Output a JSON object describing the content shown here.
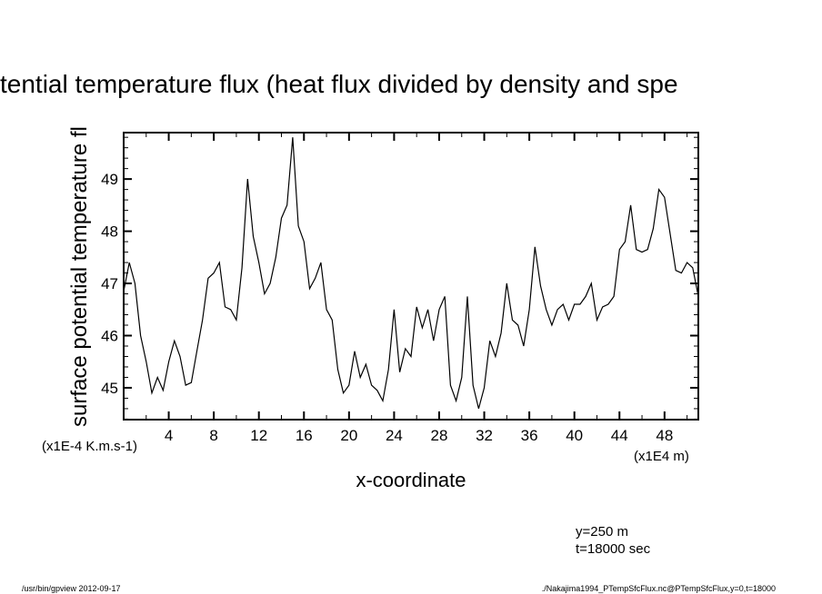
{
  "chart_data": {
    "type": "line",
    "title": "tential temperature flux (heat flux divided by density and spe",
    "xlabel": "x-coordinate",
    "ylabel": "surface potential temperature fl",
    "x_units": "(x1E4 m)",
    "y_units": "(x1E-4 K.m.s-1)",
    "xlim": [
      0,
      51
    ],
    "ylim": [
      44.39,
      49.89
    ],
    "x_ticks": [
      4,
      8,
      12,
      16,
      20,
      24,
      28,
      32,
      36,
      40,
      44,
      48
    ],
    "x_minor_step": 2,
    "y_ticks": [
      45,
      46,
      47,
      48,
      49
    ],
    "y_minor_step": 0.2,
    "grid": false,
    "series": [
      {
        "name": "PTempSfcFlux",
        "color": "#000000",
        "x": [
          0,
          0.5,
          1,
          1.5,
          2,
          2.5,
          3,
          3.5,
          4,
          4.5,
          5,
          5.5,
          6,
          6.5,
          7,
          7.5,
          8,
          8.5,
          9,
          9.5,
          10,
          10.5,
          11,
          11.5,
          12,
          12.5,
          13,
          13.5,
          14,
          14.5,
          15,
          15.5,
          16,
          16.5,
          17,
          17.5,
          18,
          18.5,
          19,
          19.5,
          20,
          20.5,
          21,
          21.5,
          22,
          22.5,
          23,
          23.5,
          24,
          24.5,
          25,
          25.5,
          26,
          26.5,
          27,
          27.5,
          28,
          28.5,
          29,
          29.5,
          30,
          30.5,
          31,
          31.5,
          32,
          32.5,
          33,
          33.5,
          34,
          34.5,
          35,
          35.5,
          36,
          36.5,
          37,
          37.5,
          38,
          38.5,
          39,
          39.5,
          40,
          40.5,
          41,
          41.5,
          42,
          42.5,
          43,
          43.5,
          44,
          44.5,
          45,
          45.5,
          46,
          46.5,
          47,
          47.5,
          48,
          48.5,
          49,
          49.5,
          50,
          50.5,
          51
        ],
        "y": [
          46.85,
          47.4,
          47.0,
          46.0,
          45.5,
          44.9,
          45.2,
          44.95,
          45.5,
          45.9,
          45.6,
          45.05,
          45.1,
          45.7,
          46.3,
          47.1,
          47.2,
          47.4,
          46.55,
          46.5,
          46.3,
          47.3,
          49.0,
          47.9,
          47.4,
          46.8,
          47.0,
          47.5,
          48.25,
          48.5,
          49.8,
          48.1,
          47.8,
          46.9,
          47.1,
          47.4,
          46.5,
          46.3,
          45.35,
          44.9,
          45.05,
          45.7,
          45.2,
          45.45,
          45.05,
          44.95,
          44.75,
          45.35,
          46.5,
          45.3,
          45.75,
          45.6,
          46.55,
          46.15,
          46.5,
          45.9,
          46.5,
          46.75,
          45.05,
          44.75,
          45.2,
          46.75,
          45.05,
          44.6,
          45.0,
          45.9,
          45.6,
          46.05,
          47.0,
          46.3,
          46.2,
          45.8,
          46.5,
          47.7,
          46.95,
          46.5,
          46.2,
          46.5,
          46.6,
          46.3,
          46.6,
          46.6,
          46.75,
          47.0,
          46.3,
          46.55,
          46.6,
          46.75,
          47.65,
          47.8,
          48.5,
          47.65,
          47.6,
          47.65,
          48.05,
          48.8,
          48.65,
          47.95,
          47.25,
          47.2,
          47.4,
          47.3,
          46.75
        ]
      }
    ],
    "annotations": [
      "y=250 m",
      "t=18000 sec"
    ]
  },
  "footer": {
    "left": "/usr/bin/gpview  2012-09-17",
    "right": "./Nakajima1994_PTempSfcFlux.nc@PTempSfcFlux,y=0,t=18000"
  }
}
